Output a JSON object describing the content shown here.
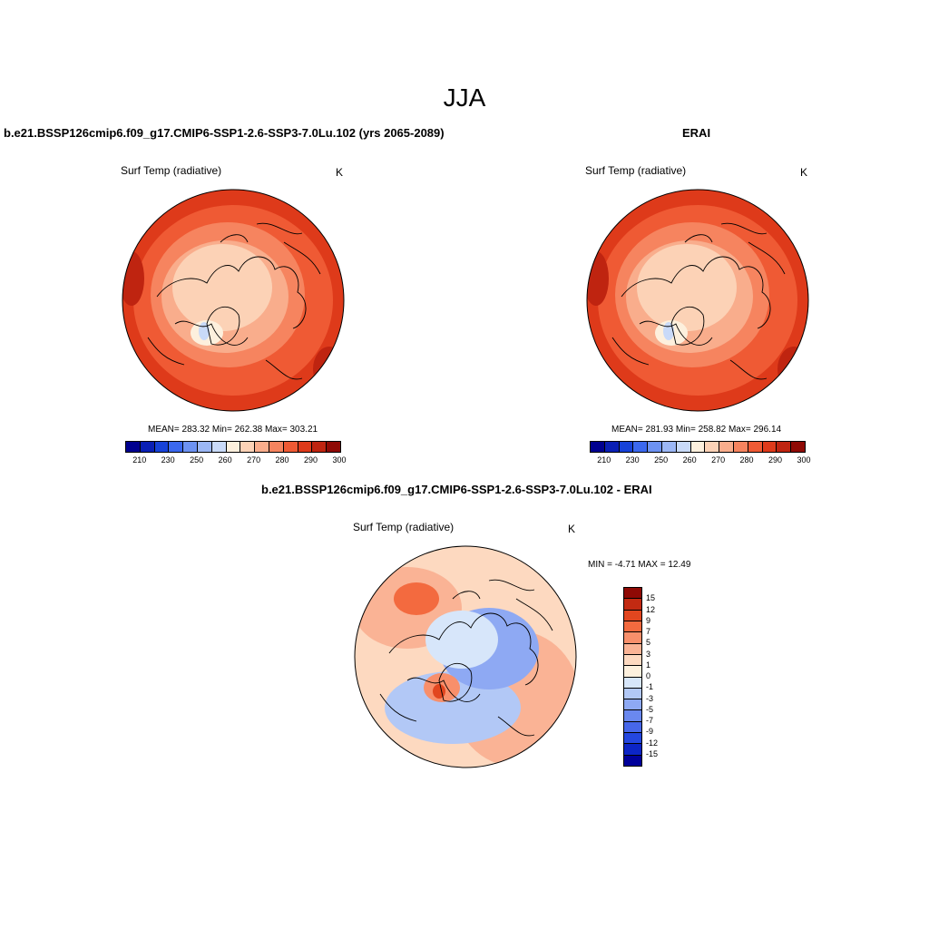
{
  "title": "JJA",
  "panels": [
    {
      "title": "b.e21.BSSP126cmip6.f09_g17.CMIP6-SSP1-2.6-SSP3-7.0Lu.102 (yrs 2065-2089)",
      "var_label": "Surf Temp (radiative)",
      "unit": "K",
      "stats": "MEAN= 283.32  Min= 262.38  Max= 303.21"
    },
    {
      "title": "ERAI",
      "var_label": "Surf Temp (radiative)",
      "unit": "K",
      "stats": "MEAN= 281.93  Min= 258.82  Max= 296.14"
    },
    {
      "title": "b.e21.BSSP126cmip6.f09_g17.CMIP6-SSP1-2.6-SSP3-7.0Lu.102 - ERAI",
      "var_label": "Surf Temp (radiative)",
      "unit": "K",
      "stats": "MIN =  -4.71 MAX =  12.49"
    }
  ],
  "abs_colorbar": {
    "colors": [
      "#00008f",
      "#0a1fb4",
      "#1742d8",
      "#3b68ee",
      "#6d92f2",
      "#9cb7f5",
      "#c9daf8",
      "#fdf0dd",
      "#fcd2b6",
      "#f9ad8c",
      "#f6845f",
      "#ef5a34",
      "#de3a1a",
      "#bf2410",
      "#8f0a05"
    ],
    "tick_labels": [
      "210",
      "230",
      "250",
      "260",
      "270",
      "280",
      "290",
      "300"
    ]
  },
  "diff_colorbar": {
    "colors": [
      "#8f0a05",
      "#c22a12",
      "#e2461f",
      "#f36a3f",
      "#f88f6b",
      "#fab395",
      "#fdd9c0",
      "#fdf0dd",
      "#d7e6fa",
      "#b2c8f6",
      "#8ea9f3",
      "#6a88ef",
      "#4767ea",
      "#2447e0",
      "#0c25c6",
      "#00009a"
    ],
    "tick_labels": [
      "15",
      "12",
      "9",
      "7",
      "5",
      "3",
      "1",
      "0",
      "-1",
      "-3",
      "-5",
      "-7",
      "-9",
      "-12",
      "-15"
    ]
  }
}
